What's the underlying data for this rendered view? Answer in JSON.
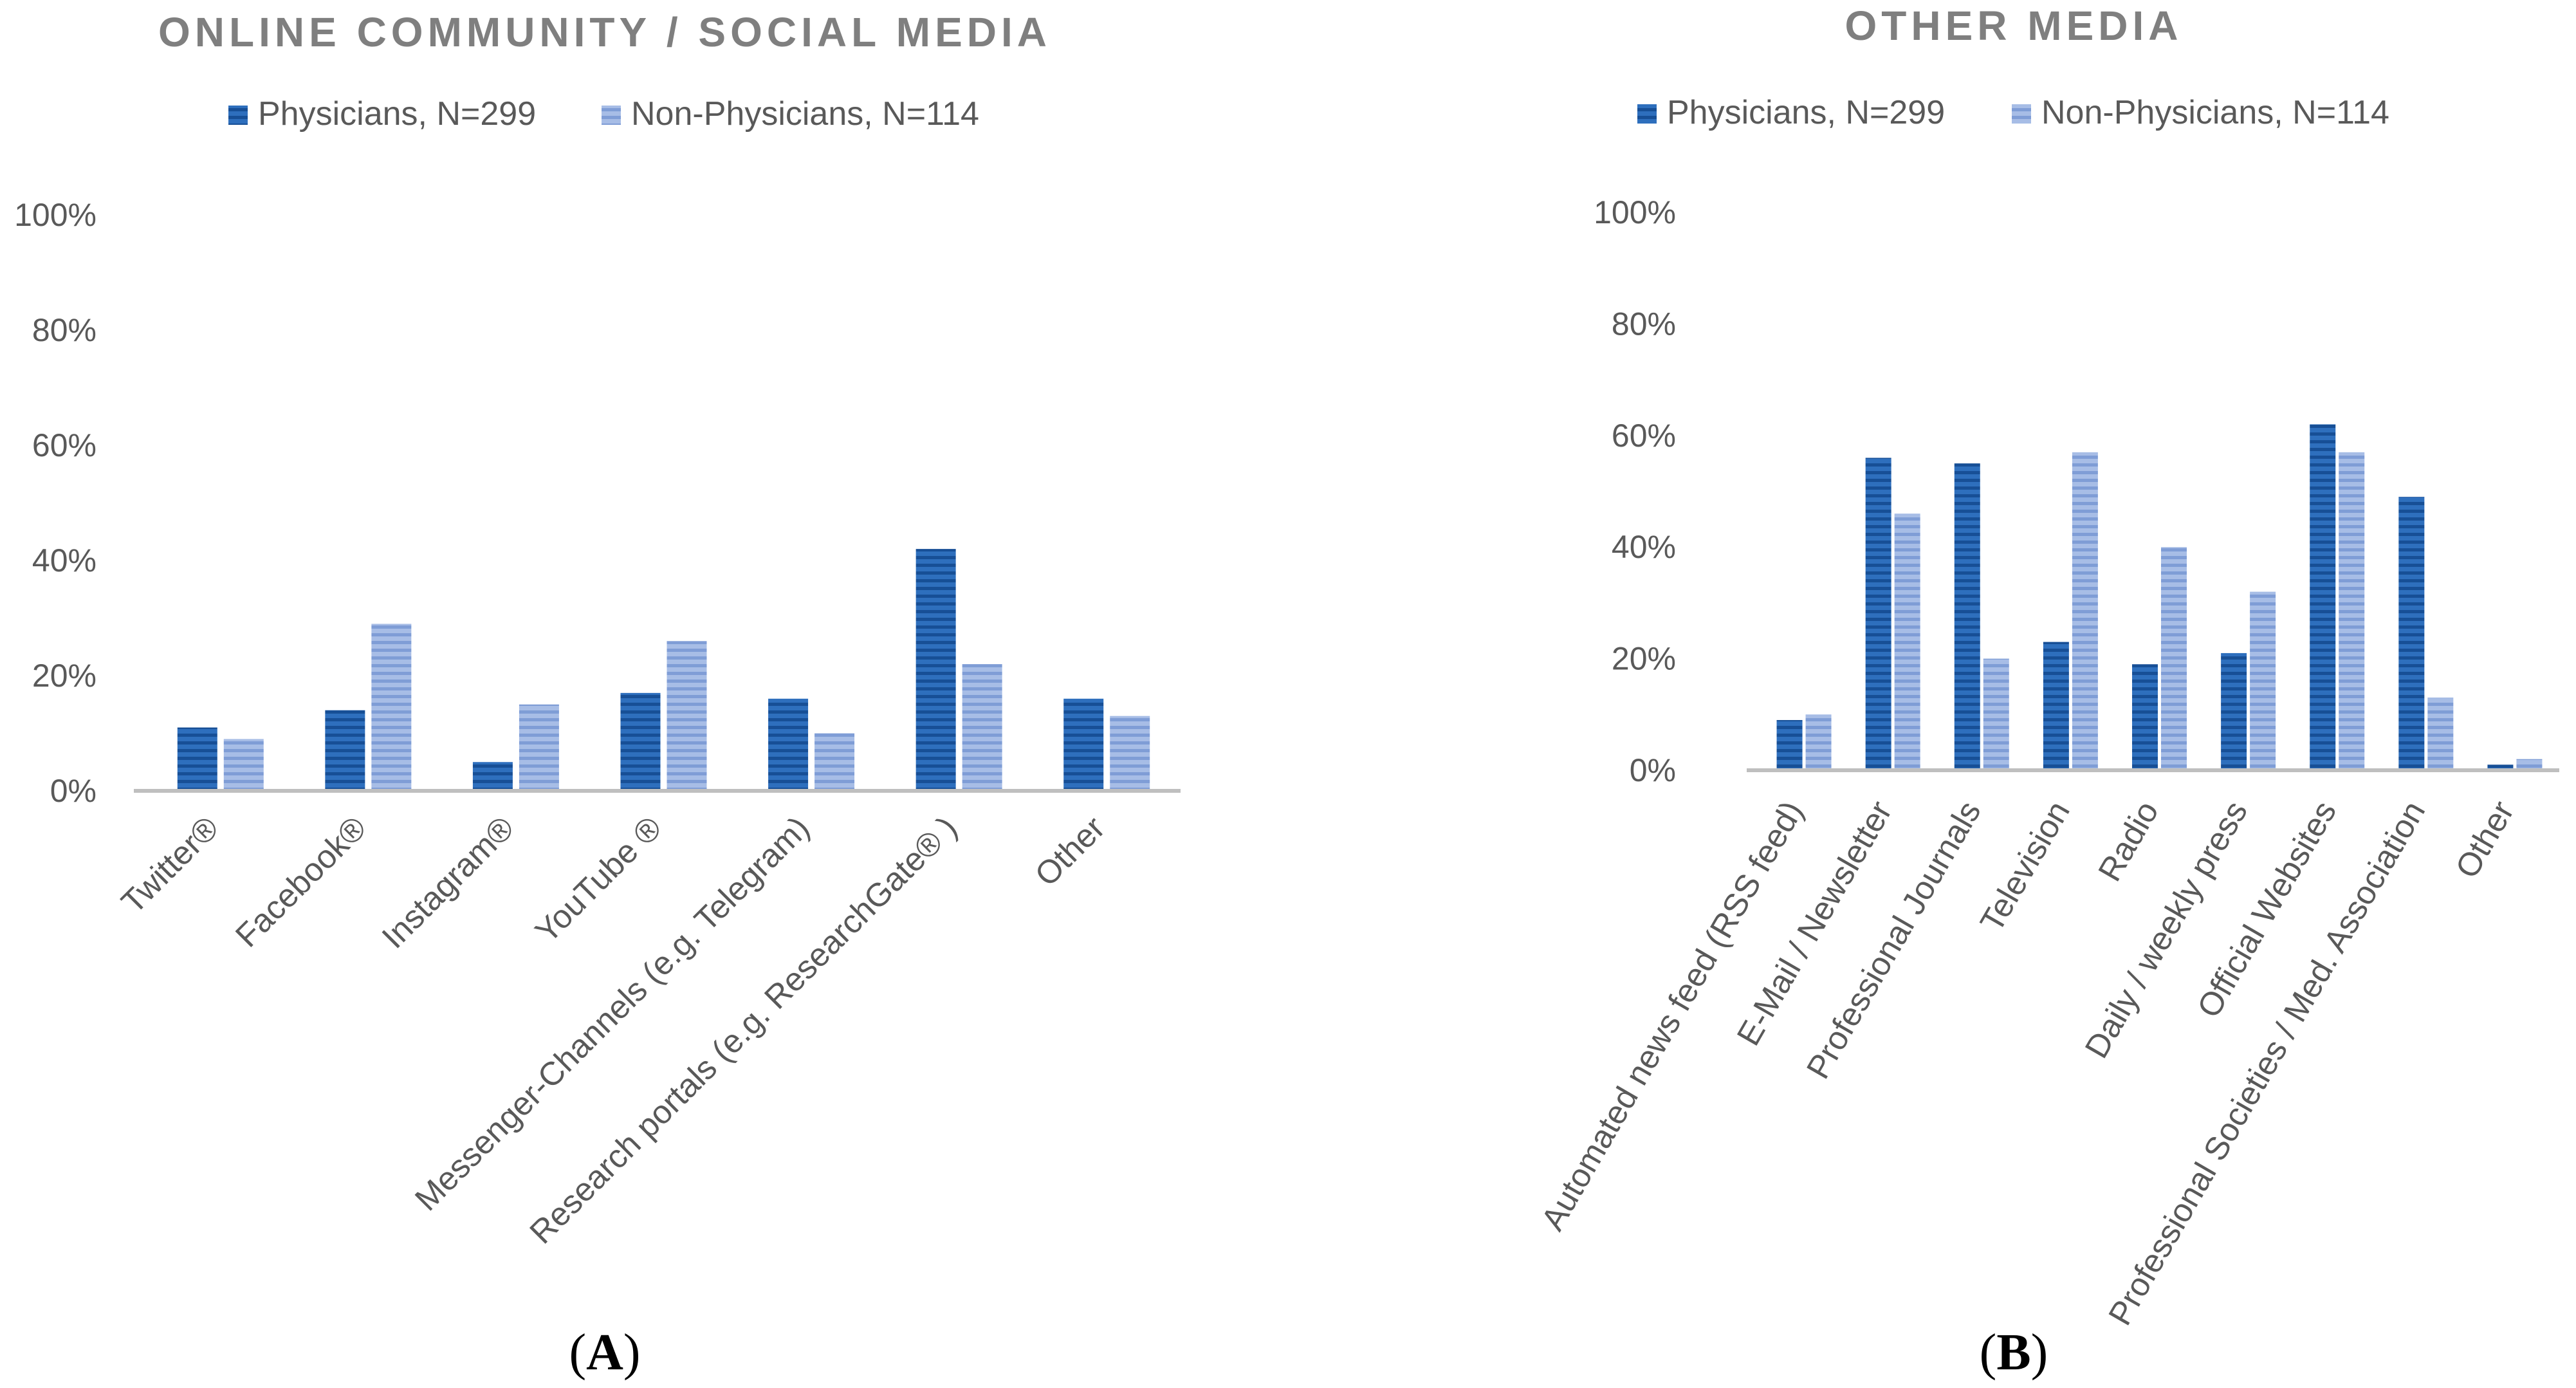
{
  "colors": {
    "physicians": "#2e6fbd",
    "physicians_dark": "#174f96",
    "non_physicians": "#a7bde6",
    "non_physicians_dark": "#7f9dd6",
    "axis": "#bfbfbf",
    "text": "#595959",
    "title": "#7f7f7f",
    "caption": "#000000"
  },
  "chart_data": [
    {
      "type": "bar",
      "title": "ONLINE COMMUNITY / SOCIAL MEDIA",
      "panel_label": "A",
      "ylim": [
        0,
        100
      ],
      "yticks": [
        0,
        20,
        40,
        60,
        80,
        100
      ],
      "ytick_labels": [
        "0%",
        "20%",
        "40%",
        "60%",
        "80%",
        "100%"
      ],
      "legend_position": "top-center",
      "categories": [
        "Twitter®",
        "Facebook®",
        "Instagram®",
        "YouTube ®",
        "Messenger-Channels (e.g. Telegram)",
        "Research portals (e.g. ResearchGate® )",
        "Other"
      ],
      "series": [
        {
          "name": "Physicians, N=299",
          "values": [
            11,
            14,
            5,
            17,
            16,
            42,
            16
          ]
        },
        {
          "name": "Non-Physicians, N=114",
          "values": [
            9,
            29,
            15,
            26,
            10,
            22,
            13
          ]
        }
      ]
    },
    {
      "type": "bar",
      "title": "OTHER MEDIA",
      "panel_label": "B",
      "ylim": [
        0,
        100
      ],
      "yticks": [
        0,
        20,
        40,
        60,
        80,
        100
      ],
      "ytick_labels": [
        "0%",
        "20%",
        "40%",
        "60%",
        "80%",
        "100%"
      ],
      "legend_position": "top-center",
      "categories": [
        "Automated news feed (RSS feed)",
        "E-Mail / Newsletter",
        "Professional Journals",
        "Television",
        "Radio",
        "Daily / weekly press",
        "Official Websites",
        "Professional Societies / Med. Association",
        "Other"
      ],
      "series": [
        {
          "name": "Physicians, N=299",
          "values": [
            9,
            56,
            55,
            23,
            19,
            21,
            62,
            49,
            1
          ]
        },
        {
          "name": "Non-Physicians, N=114",
          "values": [
            10,
            46,
            20,
            57,
            40,
            32,
            57,
            13,
            2
          ]
        }
      ]
    }
  ]
}
